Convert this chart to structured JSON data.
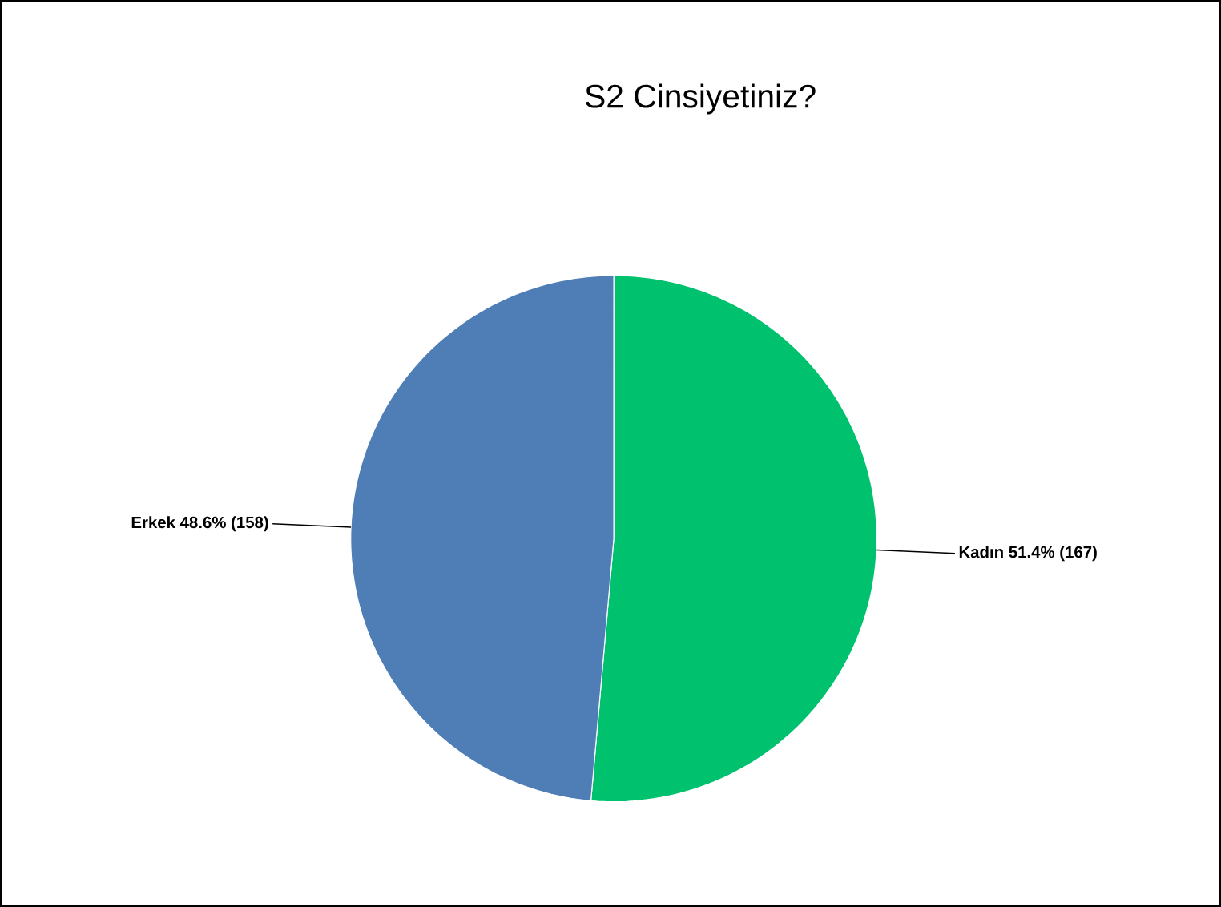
{
  "chart_data": {
    "type": "pie",
    "title": "S2 Cinsiyetiniz?",
    "categories": [
      "Kadın",
      "Erkek"
    ],
    "values": [
      167,
      158
    ],
    "value_labels": [
      "51.4% (167)",
      "48.6% (158)"
    ],
    "colors": [
      "#00c16e",
      "#4f7db5"
    ]
  }
}
